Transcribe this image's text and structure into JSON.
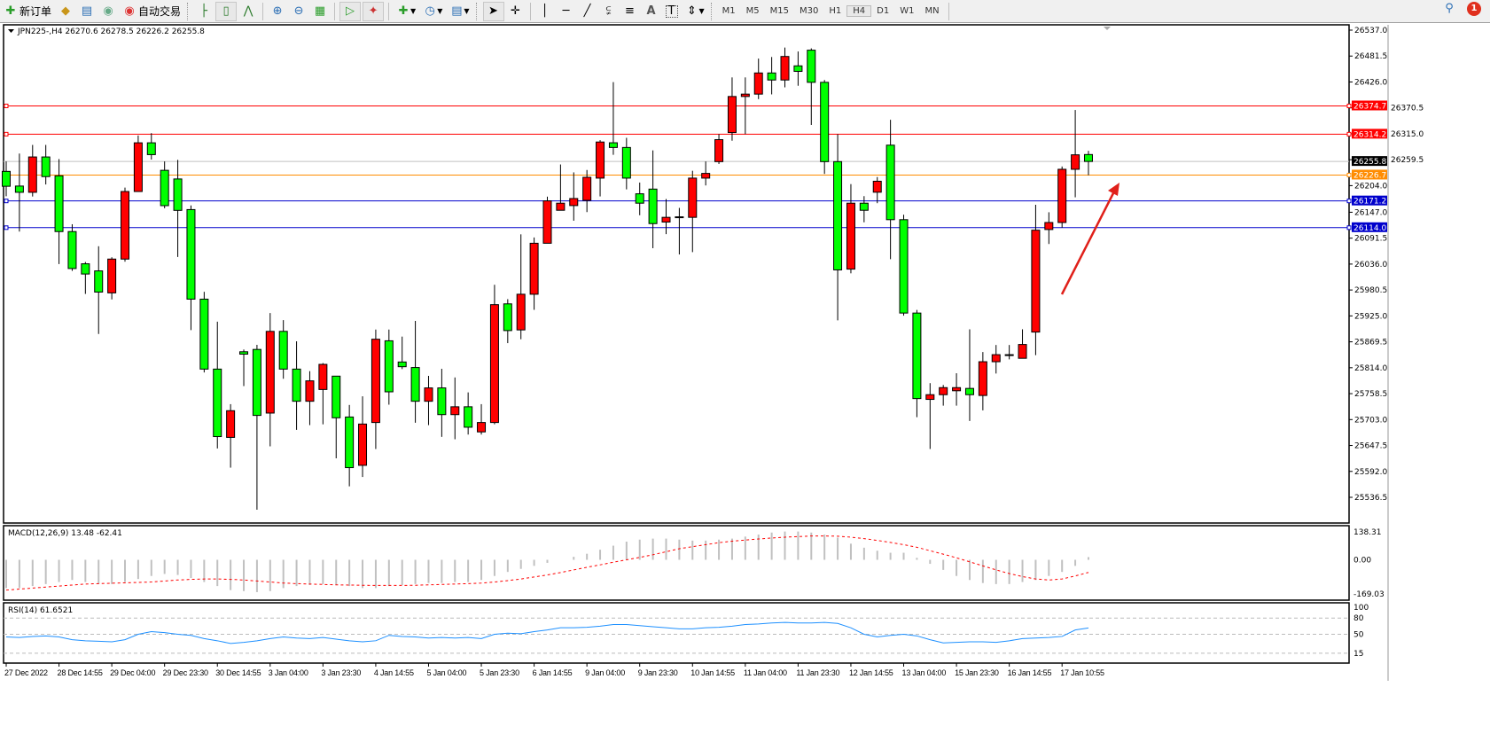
{
  "toolbar": {
    "new_order_label": "新订单",
    "auto_trading_label": "自动交易",
    "icons": [
      "new-order-icon",
      "gold-icon",
      "market-watch-icon",
      "signal-icon",
      "auto-trading-icon",
      "bar-chart-icon",
      "candlestick-icon",
      "line-chart-icon",
      "zoom-in-icon",
      "zoom-out-icon",
      "tile-windows-icon",
      "auto-scroll-icon",
      "chart-shift-icon",
      "add-indicator-icon",
      "periods-icon",
      "templates-icon",
      "cursor-icon",
      "crosshair-icon",
      "vertical-line-icon",
      "horizontal-line-icon",
      "trendline-icon",
      "equidistant-channel-icon",
      "fibonacci-icon",
      "text-icon",
      "text-label-icon",
      "arrows-icon"
    ],
    "timeframes": [
      "M1",
      "M5",
      "M15",
      "M30",
      "H1",
      "H4",
      "D1",
      "W1",
      "MN"
    ],
    "active_timeframe": "H4",
    "notification_count": "1"
  },
  "chart": {
    "symbol_header": "JPN225-,H4  26270.6 26278.5 26226.2 26255.8",
    "price_ticks": [
      "26537.0",
      "26481.5",
      "26426.0",
      "26370.5",
      "26315.0",
      "26259.5",
      "26204.0",
      "26147.0",
      "26091.5",
      "26036.0",
      "25980.5",
      "25925.0",
      "25869.5",
      "25814.0",
      "25758.5",
      "25703.0",
      "25647.5",
      "25592.0",
      "25536.5"
    ],
    "price_tick_values": [
      26537.0,
      26481.5,
      26426.0,
      26370.5,
      26315.0,
      26259.5,
      26204.0,
      26147.0,
      26091.5,
      26036.0,
      25980.5,
      25925.0,
      25869.5,
      25814.0,
      25758.5,
      25703.0,
      25647.5,
      25592.0,
      25536.5
    ],
    "levels": [
      {
        "value": 26374.7,
        "label": "26374.7",
        "color": "#ff0000"
      },
      {
        "value": 26314.2,
        "label": "26314.2",
        "color": "#ff0000"
      },
      {
        "value": 26226.7,
        "label": "26226.7",
        "color": "#ff8c00"
      },
      {
        "value": 26171.2,
        "label": "26171.2",
        "color": "#0000cc"
      },
      {
        "value": 26114.0,
        "label": "26114.0",
        "color": "#0000cc"
      }
    ],
    "bid": {
      "value": 26255.8,
      "label": "26255.8",
      "color": "#c0c0c0"
    },
    "bull_color": "#ff0000",
    "bear_color": "#00ff00",
    "annotation_arrow_color": "#e0201a",
    "candles_ohlc": [
      [
        26234.5,
        26255.9,
        26181.3,
        26202.6
      ],
      [
        26203.1,
        26272.7,
        26105.6,
        26189.7
      ],
      [
        26189.7,
        26291.2,
        26180.7,
        26265.4
      ],
      [
        26265.4,
        26291.2,
        26206.5,
        26223.3
      ],
      [
        26225.0,
        26260.9,
        26036.0,
        26105.6
      ],
      [
        26105.6,
        26121.3,
        26021.4,
        26026.5
      ],
      [
        26036.6,
        26040.5,
        25972.1,
        26014.7
      ],
      [
        26021.4,
        26074.2,
        25886.3,
        25976.0
      ],
      [
        25974.3,
        26050.6,
        25960.3,
        26046.7
      ],
      [
        26046.7,
        26199.8,
        26041.1,
        26191.4
      ],
      [
        26191.4,
        26311.4,
        26191.4,
        26295.7
      ],
      [
        26295.7,
        26316.4,
        26259.8,
        26270.4
      ],
      [
        26236.8,
        26255.9,
        26155.5,
        26161.1
      ],
      [
        26218.3,
        26259.2,
        26051.2,
        26151.0
      ],
      [
        26152.7,
        26161.6,
        25894.7,
        25960.9
      ],
      [
        25960.9,
        25976.6,
        25803.9,
        25811.1
      ],
      [
        25811.1,
        25912.6,
        25641.2,
        25666.5
      ],
      [
        25664.8,
        25736.0,
        25600.0,
        25722.0
      ],
      [
        25848.2,
        25853.0,
        25774.7,
        25843.1
      ],
      [
        25853.2,
        25863.0,
        25510.0,
        25711.9
      ],
      [
        25716.9,
        25931.2,
        25645.7,
        25891.9
      ],
      [
        25891.9,
        25916.0,
        25790.4,
        25811.1
      ],
      [
        25811.1,
        25870.6,
        25681.0,
        25742.2
      ],
      [
        25742.2,
        25806.7,
        25691.1,
        25785.9
      ],
      [
        25767.4,
        25824.0,
        25692.8,
        25821.2
      ],
      [
        25796.0,
        25796.0,
        25620.0,
        25706.8
      ],
      [
        25708.5,
        25734.3,
        25560.0,
        25600.0
      ],
      [
        25605.0,
        25752.8,
        25580.0,
        25693.4
      ],
      [
        25696.7,
        25895.8,
        25640.0,
        25875.1
      ],
      [
        25871.7,
        25895.8,
        25734.9,
        25762.4
      ],
      [
        25826.3,
        25880.7,
        25811.1,
        25816.2
      ],
      [
        25814.5,
        25914.3,
        25696.2,
        25742.2
      ],
      [
        25742.2,
        25796.6,
        25691.1,
        25770.8
      ],
      [
        25770.8,
        25811.7,
        25665.9,
        25713.6
      ],
      [
        25713.6,
        25793.2,
        25660.8,
        25730.4
      ],
      [
        25730.4,
        25761.2,
        25670.9,
        25686.6
      ],
      [
        25676.6,
        25736.0,
        25670.9,
        25696.7
      ],
      [
        25696.7,
        25991.7,
        25692.8,
        25949.1
      ],
      [
        25950.8,
        25960.9,
        25866.7,
        25893.6
      ],
      [
        25895.0,
        26099.7,
        25875.0,
        25971.4
      ],
      [
        25971.4,
        26093.0,
        25938.0,
        26080.6
      ],
      [
        26080.6,
        26180.4,
        26080.6,
        26171.4
      ],
      [
        26151.2,
        26249.3,
        26151.2,
        26166.4
      ],
      [
        26161.3,
        26232.4,
        26128.8,
        26176.4
      ],
      [
        26172.5,
        26237.5,
        26147.3,
        26221.8
      ],
      [
        26220.1,
        26301.4,
        26180.9,
        26297.4
      ],
      [
        26295.8,
        26425.7,
        26270.0,
        26285.7
      ],
      [
        26285.7,
        26306.4,
        26196.0,
        26220.1
      ],
      [
        26186.5,
        26210.6,
        26140.6,
        26166.4
      ],
      [
        26196.6,
        26279.5,
        26070.0,
        26122.7
      ],
      [
        26126.0,
        26175.3,
        26100.2,
        26136.1
      ],
      [
        26137.2,
        26156.3,
        26056.6,
        26136.1
      ],
      [
        26136.1,
        26235.8,
        26061.6,
        26220.1
      ],
      [
        26220.1,
        26255.8,
        26204.4,
        26230.2
      ],
      [
        26255.4,
        26314.2,
        26250.4,
        26302.5
      ],
      [
        26317.6,
        26435.8,
        26300.2,
        26394.9
      ],
      [
        26394.9,
        26435.8,
        26314.2,
        26400.0
      ],
      [
        26400.0,
        26476.1,
        26389.3,
        26445.3
      ],
      [
        26445.3,
        26479.5,
        26399.4,
        26430.2
      ],
      [
        26430.2,
        26499.7,
        26414.5,
        26480.6
      ],
      [
        26460.5,
        26491.3,
        26417.9,
        26448.7
      ],
      [
        26494.1,
        26498.0,
        26333.9,
        26425.2
      ],
      [
        26425.2,
        26430.2,
        26229.1,
        26255.4
      ],
      [
        26255.4,
        26314.2,
        25915.4,
        26023.5
      ],
      [
        26025.2,
        26207.3,
        26016.2,
        26166.4
      ],
      [
        26166.4,
        26181.5,
        26125.5,
        26151.2
      ],
      [
        26189.9,
        26222.4,
        26166.4,
        26213.4
      ],
      [
        26290.7,
        26345.1,
        26046.4,
        26131.1
      ],
      [
        26131.1,
        26141.7,
        25925.5,
        25931.1
      ],
      [
        25931.1,
        25937.8,
        25708.1,
        25747.9
      ],
      [
        25746.2,
        25781.0,
        25640.0,
        25756.3
      ],
      [
        25756.3,
        25777.0,
        25732.8,
        25771.4
      ],
      [
        25764.7,
        25802.2,
        25732.8,
        25771.4
      ],
      [
        25769.7,
        25896.3,
        25700.0,
        25756.3
      ],
      [
        25754.6,
        25847.6,
        25722.7,
        25826.9
      ],
      [
        25826.9,
        25862.7,
        25801.6,
        25842.0
      ],
      [
        25842.0,
        25862.7,
        25831.9,
        25842.0
      ],
      [
        25834.2,
        25896.3,
        25834.2,
        25863.8
      ],
      [
        25890.4,
        26163.0,
        25841.0,
        26108.6
      ],
      [
        26110.0,
        26147.0,
        26079.0,
        26125.0
      ],
      [
        26125.0,
        26245.0,
        26114.0,
        26239.0
      ],
      [
        26239.0,
        26366.0,
        26179.0,
        26270.0
      ],
      [
        26270.6,
        26278.5,
        26226.2,
        26255.8
      ]
    ],
    "time_labels": [
      "27 Dec 2022",
      "28 Dec 14:55",
      "29 Dec 04:00",
      "29 Dec 23:30",
      "30 Dec 14:55",
      "3 Jan 04:00",
      "3 Jan 23:30",
      "4 Jan 14:55",
      "5 Jan 04:00",
      "5 Jan 23:30",
      "6 Jan 14:55",
      "9 Jan 04:00",
      "9 Jan 23:30",
      "10 Jan 14:55",
      "11 Jan 04:00",
      "11 Jan 23:30",
      "12 Jan 14:55",
      "13 Jan 04:00",
      "15 Jan 23:30",
      "16 Jan 14:55",
      "17 Jan 10:55"
    ]
  },
  "macd": {
    "header": "MACD(12,26,9) 13.48 -62.41",
    "ticks": [
      "138.31",
      "0.00",
      "-169.03"
    ],
    "range": [
      -169.03,
      138.31
    ],
    "hist_color": "#c0c0c0",
    "signal_color": "#ff0000",
    "main": [
      -140,
      -140,
      -130,
      -120,
      -110,
      -100,
      -110,
      -120,
      -120,
      -110,
      -95,
      -80,
      -70,
      -75,
      -90,
      -110,
      -130,
      -150,
      -155,
      -160,
      -155,
      -140,
      -130,
      -125,
      -120,
      -125,
      -130,
      -140,
      -140,
      -130,
      -125,
      -120,
      -115,
      -115,
      -110,
      -110,
      -100,
      -80,
      -60,
      -45,
      -30,
      -15,
      0,
      15,
      30,
      50,
      70,
      90,
      100,
      105,
      105,
      100,
      95,
      95,
      100,
      105,
      115,
      125,
      135,
      140,
      140,
      135,
      125,
      110,
      80,
      60,
      45,
      35,
      35,
      10,
      -20,
      -50,
      -80,
      -100,
      -115,
      -120,
      -120,
      -110,
      -100,
      -80,
      -60,
      -30,
      13.48
    ],
    "signal": [
      -150,
      -145,
      -140,
      -135,
      -130,
      -125,
      -120,
      -118,
      -116,
      -114,
      -112,
      -110,
      -105,
      -100,
      -97,
      -95,
      -95,
      -97,
      -100,
      -105,
      -110,
      -115,
      -118,
      -120,
      -122,
      -124,
      -125,
      -126,
      -127,
      -127,
      -127,
      -126,
      -124,
      -122,
      -120,
      -118,
      -115,
      -110,
      -103,
      -95,
      -85,
      -75,
      -63,
      -50,
      -37,
      -25,
      -12,
      0,
      12,
      25,
      40,
      55,
      65,
      75,
      85,
      92,
      98,
      103,
      108,
      112,
      115,
      118,
      118,
      117,
      112,
      105,
      96,
      86,
      75,
      62,
      45,
      28,
      10,
      -10,
      -30,
      -50,
      -68,
      -83,
      -95,
      -100,
      -95,
      -80,
      -62.41
    ]
  },
  "rsi": {
    "header": "RSI(14) 61.6521",
    "ticks": [
      "100",
      "80",
      "50",
      "15"
    ],
    "levels": [
      80,
      50,
      15
    ],
    "color": "#1e90ff",
    "values": [
      45,
      44,
      46,
      47,
      45,
      40,
      38,
      37,
      36,
      40,
      50,
      55,
      53,
      50,
      48,
      42,
      38,
      33,
      35,
      38,
      42,
      45,
      43,
      42,
      44,
      41,
      38,
      36,
      38,
      48,
      46,
      45,
      43,
      44,
      43,
      44,
      42,
      50,
      52,
      51,
      55,
      58,
      62,
      62,
      63,
      65,
      68,
      68,
      66,
      64,
      62,
      60,
      60,
      62,
      63,
      65,
      68,
      69,
      71,
      72,
      71,
      71,
      72,
      70,
      62,
      50,
      45,
      48,
      50,
      47,
      40,
      34,
      35,
      36,
      36,
      35,
      38,
      42,
      43,
      44,
      46,
      58,
      61.6521
    ]
  }
}
